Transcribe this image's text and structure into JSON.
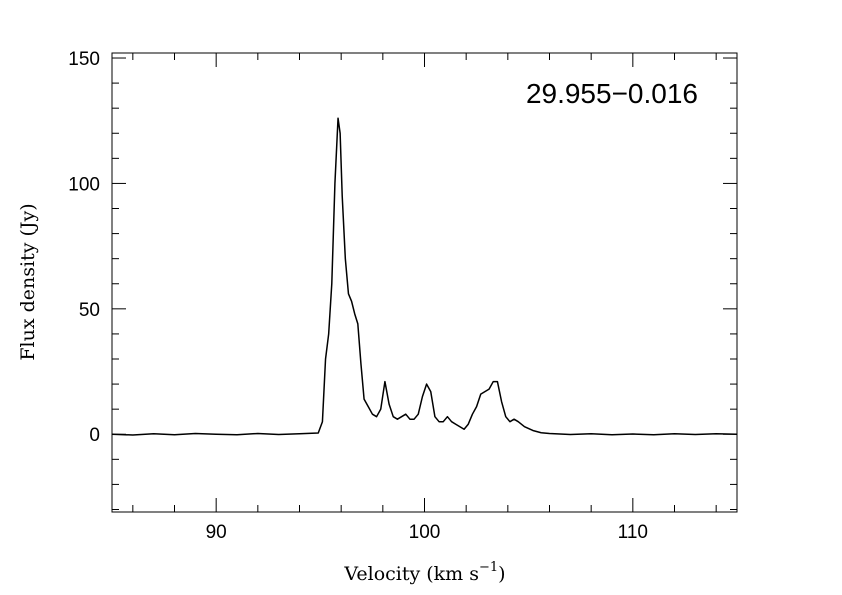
{
  "chart_data": {
    "type": "line",
    "annotation": "29.955−0.016",
    "xlabel_main": "Velocity (km s",
    "xlabel_sup": "−1",
    "xlabel_close": ")",
    "ylabel": "Flux density (Jy)",
    "xlim": [
      85.0,
      115.0
    ],
    "ylim": [
      -31,
      152
    ],
    "x_ticks": [
      90,
      100,
      110
    ],
    "x_tick_labels": [
      "90",
      "100",
      "110"
    ],
    "y_ticks": [
      0,
      50,
      100,
      150
    ],
    "y_tick_labels": [
      "0",
      "50",
      "100",
      "150"
    ],
    "x_minor_step": 2,
    "y_minor_step": 10,
    "line_color": "#000000",
    "series": [
      {
        "x": [
          85.0,
          86.0,
          87.0,
          88.0,
          89.0,
          90.0,
          91.0,
          92.0,
          93.0,
          94.0,
          94.9,
          95.1,
          95.25,
          95.4,
          95.55,
          95.7,
          95.85,
          95.95,
          96.05,
          96.2,
          96.35,
          96.5,
          96.65,
          96.8,
          96.95,
          97.1,
          97.3,
          97.5,
          97.7,
          97.9,
          98.1,
          98.3,
          98.5,
          98.7,
          98.9,
          99.1,
          99.3,
          99.5,
          99.7,
          99.9,
          100.1,
          100.3,
          100.5,
          100.7,
          100.9,
          101.1,
          101.3,
          101.5,
          101.7,
          101.9,
          102.1,
          102.3,
          102.5,
          102.7,
          102.9,
          103.1,
          103.3,
          103.5,
          103.7,
          103.9,
          104.1,
          104.3,
          104.5,
          104.8,
          105.2,
          105.6,
          106.0,
          106.5,
          107.0,
          108.0,
          109.0,
          110.0,
          111.0,
          112.0,
          113.0,
          114.0,
          115.0
        ],
        "y": [
          0.0,
          -0.3,
          0.2,
          -0.2,
          0.3,
          0.0,
          -0.2,
          0.3,
          -0.1,
          0.2,
          0.5,
          5.0,
          30.0,
          40.0,
          60.0,
          100.0,
          126.0,
          120.0,
          95.0,
          70.0,
          56.0,
          53.0,
          48.0,
          44.0,
          28.0,
          14.0,
          11.0,
          8.0,
          7.0,
          10.0,
          21.0,
          12.0,
          7.0,
          6.0,
          7.0,
          8.0,
          6.0,
          6.0,
          8.0,
          15.0,
          20.0,
          17.0,
          7.0,
          5.0,
          5.0,
          7.0,
          5.0,
          4.0,
          3.0,
          2.0,
          4.0,
          8.0,
          11.0,
          16.0,
          17.0,
          18.0,
          21.0,
          21.0,
          13.0,
          7.0,
          5.0,
          6.0,
          5.0,
          3.0,
          1.5,
          0.6,
          0.3,
          0.1,
          -0.1,
          0.2,
          -0.2,
          0.1,
          -0.2,
          0.2,
          -0.1,
          0.2,
          0.0
        ]
      }
    ]
  }
}
